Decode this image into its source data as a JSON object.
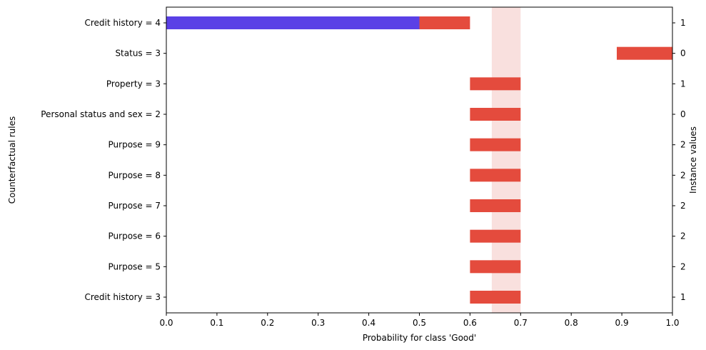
{
  "chart_data": {
    "type": "bar",
    "orientation": "horizontal",
    "xlabel": "Probability for class 'Good'",
    "ylabel": "Counterfactual rules",
    "ylabel_right": "Instance values",
    "xlim": [
      0.0,
      1.0
    ],
    "xticks": [
      "0.0",
      "0.1",
      "0.2",
      "0.3",
      "0.4",
      "0.5",
      "0.6",
      "0.7",
      "0.8",
      "0.9",
      "1.0"
    ],
    "grid": false,
    "band": {
      "from": 0.643,
      "to": 0.7,
      "color": "#f9e0de"
    },
    "colors": {
      "base": "#5a40e6",
      "interval": "#e44b3d"
    },
    "categories": [
      "Credit history = 4",
      "Status = 3",
      "Property = 3",
      "Personal status and sex = 2",
      "Purpose = 9",
      "Purpose = 8",
      "Purpose = 7",
      "Purpose = 6",
      "Purpose = 5",
      "Credit history = 3"
    ],
    "instance_values": [
      "1",
      "0",
      "1",
      "0",
      "2",
      "2",
      "2",
      "2",
      "2",
      "1"
    ],
    "base_values": [
      0.5,
      0,
      0,
      0,
      0,
      0,
      0,
      0,
      0,
      0
    ],
    "intervals": [
      [
        0.5,
        0.6
      ],
      [
        0.89,
        1.0
      ],
      [
        0.6,
        0.7
      ],
      [
        0.6,
        0.7
      ],
      [
        0.6,
        0.7
      ],
      [
        0.6,
        0.7
      ],
      [
        0.6,
        0.7
      ],
      [
        0.6,
        0.7
      ],
      [
        0.6,
        0.7
      ],
      [
        0.6,
        0.7
      ]
    ]
  }
}
